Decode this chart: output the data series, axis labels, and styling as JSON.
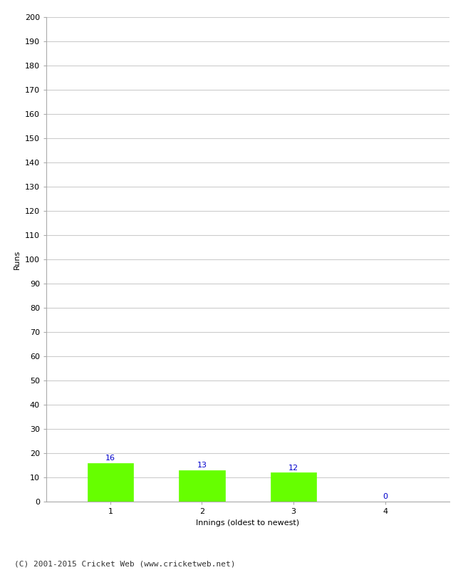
{
  "categories": [
    "1",
    "2",
    "3",
    "4"
  ],
  "values": [
    16,
    13,
    12,
    0
  ],
  "bar_color": "#66ff00",
  "bar_edge_color": "#66ff00",
  "value_color": "#0000cc",
  "xlabel": "Innings (oldest to newest)",
  "ylabel": "Runs",
  "ylim": [
    0,
    200
  ],
  "yticks": [
    0,
    10,
    20,
    30,
    40,
    50,
    60,
    70,
    80,
    90,
    100,
    110,
    120,
    130,
    140,
    150,
    160,
    170,
    180,
    190,
    200
  ],
  "grid_color": "#cccccc",
  "background_color": "#ffffff",
  "footer": "(C) 2001-2015 Cricket Web (www.cricketweb.net)",
  "value_fontsize": 8,
  "axis_fontsize": 8,
  "label_fontsize": 8,
  "footer_fontsize": 8,
  "bar_width": 0.5
}
